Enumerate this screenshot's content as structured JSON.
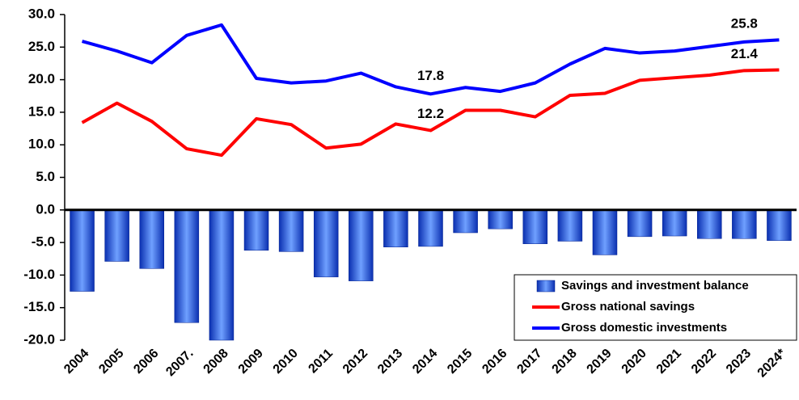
{
  "chart_data": {
    "type": "bar_line",
    "categories": [
      "2004",
      "2005",
      "2006",
      "2007.",
      "2008",
      "2009",
      "2010",
      "2011",
      "2012",
      "2013",
      "2014",
      "2015",
      "2016",
      "2017",
      "2018",
      "2019",
      "2020",
      "2021",
      "2022",
      "2023",
      "2024*"
    ],
    "series": [
      {
        "name": "Savings and investment balance",
        "type": "bar",
        "color": "#1f4fd8",
        "values": [
          -12.5,
          -7.9,
          -9.0,
          -17.3,
          -20.0,
          -6.2,
          -6.4,
          -10.3,
          -10.9,
          -5.7,
          -5.6,
          -3.5,
          -2.9,
          -5.2,
          -4.8,
          -6.9,
          -4.1,
          -4.0,
          -4.4,
          -4.4,
          -4.7
        ]
      },
      {
        "name": "Gross national savings",
        "type": "line",
        "color": "#ff0000",
        "values": [
          13.4,
          16.4,
          13.6,
          9.4,
          8.4,
          14.0,
          13.1,
          9.5,
          10.1,
          13.2,
          12.2,
          15.3,
          15.3,
          14.3,
          17.6,
          17.9,
          19.9,
          20.3,
          20.7,
          21.4,
          21.5
        ],
        "value_labels": [
          null,
          null,
          null,
          null,
          null,
          null,
          null,
          null,
          null,
          null,
          "12.2",
          null,
          null,
          null,
          null,
          null,
          null,
          null,
          null,
          "21.4",
          null
        ]
      },
      {
        "name": "Gross domestic investments",
        "type": "line",
        "color": "#0000ff",
        "values": [
          25.9,
          24.4,
          22.6,
          26.8,
          28.4,
          20.2,
          19.5,
          19.8,
          21.0,
          18.9,
          17.8,
          18.8,
          18.2,
          19.5,
          22.4,
          24.8,
          24.1,
          24.4,
          25.1,
          25.8,
          26.1
        ],
        "value_labels": [
          null,
          null,
          null,
          null,
          null,
          null,
          null,
          null,
          null,
          null,
          "17.8",
          null,
          null,
          null,
          null,
          null,
          null,
          null,
          null,
          "25.8",
          null
        ]
      }
    ],
    "ylim": [
      -20,
      30
    ],
    "yticks": [
      {
        "value": 30,
        "label": "30.0"
      },
      {
        "value": 25,
        "label": "25.0"
      },
      {
        "value": 20,
        "label": "20.0"
      },
      {
        "value": 15,
        "label": "15.0"
      },
      {
        "value": 10,
        "label": "10.0"
      },
      {
        "value": 5,
        "label": "5.0"
      },
      {
        "value": 0,
        "label": "0.0"
      },
      {
        "value": -5,
        "label": "-5.0"
      },
      {
        "value": -10,
        "label": "-10.0"
      },
      {
        "value": -15,
        "label": "-15.0"
      },
      {
        "value": -20,
        "label": "-20.0"
      }
    ],
    "legend": "lower right",
    "grid": false
  }
}
